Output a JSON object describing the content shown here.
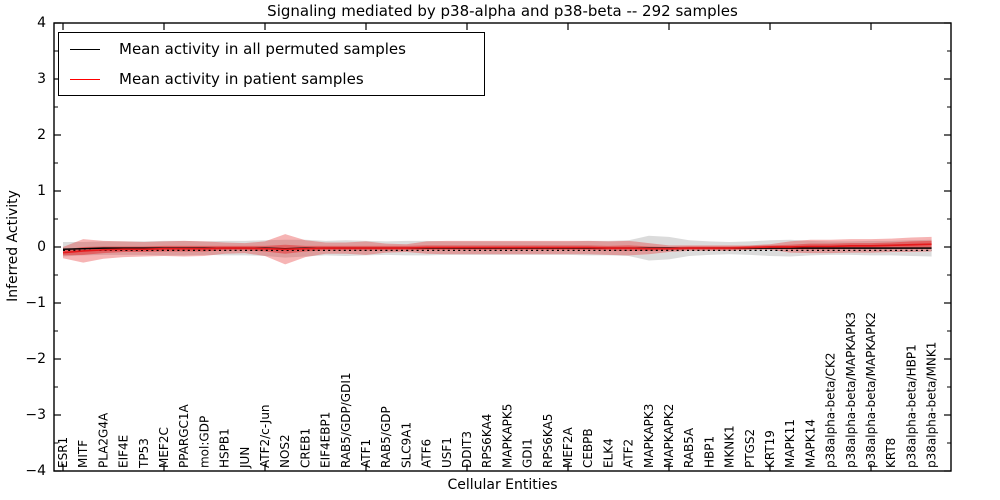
{
  "chart_data": {
    "type": "line",
    "title": "Signaling mediated by p38-alpha and p38-beta -- 292 samples",
    "xlabel": "Cellular Entities",
    "ylabel": "Inferred Activity",
    "ylim": [
      -4,
      4
    ],
    "yticks": [
      -4,
      -3,
      -2,
      -1,
      0,
      1,
      2,
      3,
      4
    ],
    "y_minor_step": 0.5,
    "x_major_ticks_every": 5,
    "grid": false,
    "legend_position": "upper left",
    "legend": [
      {
        "label": "Mean activity in all permuted samples",
        "color": "#000000"
      },
      {
        "label": "Mean activity in patient samples",
        "color": "#ff0000"
      }
    ],
    "categories": [
      "ESR1",
      "MITF",
      "PLA2G4A",
      "EIF4E",
      "TP53",
      "MEF2C",
      "PPARGC1A",
      "mol:GDP",
      "HSPB1",
      "JUN",
      "ATF2/c-Jun",
      "NOS2",
      "CREB1",
      "EIF4EBP1",
      "RAB5/GDP/GDI1",
      "ATF1",
      "RAB5/GDP",
      "SLC9A1",
      "ATF6",
      "USF1",
      "DDIT3",
      "RPS6KA4",
      "MAPKAPK5",
      "GDI1",
      "RPS6KA5",
      "MEF2A",
      "CEBPB",
      "ELK4",
      "ATF2",
      "MAPKAPK3",
      "MAPKAPK2",
      "RAB5A",
      "HBP1",
      "MKNK1",
      "PTGS2",
      "KRT19",
      "MAPK11",
      "MAPK14",
      "p38alpha-beta/CK2",
      "p38alpha-beta/MAPKAPK3",
      "p38alpha-beta/MAPKAPK2",
      "KRT8",
      "p38alpha-beta/HBP1",
      "p38alpha-beta/MNK1"
    ],
    "series": [
      {
        "name": "mean_permuted",
        "color": "#000000",
        "style": "solid",
        "width": 1.4,
        "values": [
          -0.04,
          -0.03,
          -0.02,
          -0.02,
          -0.02,
          -0.02,
          -0.02,
          -0.02,
          -0.02,
          -0.02,
          -0.02,
          -0.03,
          -0.02,
          -0.02,
          -0.02,
          -0.02,
          -0.02,
          -0.02,
          -0.02,
          -0.02,
          -0.02,
          -0.02,
          -0.02,
          -0.02,
          -0.02,
          -0.02,
          -0.02,
          -0.02,
          -0.02,
          -0.02,
          -0.02,
          -0.02,
          -0.02,
          -0.02,
          -0.02,
          -0.02,
          -0.02,
          -0.02,
          -0.02,
          -0.02,
          -0.02,
          -0.02,
          -0.02,
          -0.02
        ]
      },
      {
        "name": "median_permuted",
        "color": "#000000",
        "style": "dashed",
        "width": 1.2,
        "values": [
          -0.06,
          -0.06,
          -0.06,
          -0.06,
          -0.06,
          -0.06,
          -0.06,
          -0.06,
          -0.06,
          -0.06,
          -0.06,
          -0.06,
          -0.06,
          -0.06,
          -0.06,
          -0.06,
          -0.06,
          -0.06,
          -0.06,
          -0.06,
          -0.06,
          -0.06,
          -0.06,
          -0.06,
          -0.06,
          -0.06,
          -0.06,
          -0.06,
          -0.06,
          -0.06,
          -0.06,
          -0.06,
          -0.06,
          -0.06,
          -0.06,
          -0.06,
          -0.06,
          -0.06,
          -0.06,
          -0.06,
          -0.06,
          -0.06,
          -0.06,
          -0.06
        ]
      },
      {
        "name": "mean_patient",
        "color": "#e41a1c",
        "style": "solid",
        "width": 1.7,
        "values": [
          -0.1,
          -0.07,
          -0.05,
          -0.04,
          -0.04,
          -0.03,
          -0.03,
          -0.03,
          -0.02,
          -0.02,
          -0.03,
          -0.04,
          -0.03,
          -0.02,
          -0.02,
          -0.02,
          -0.02,
          -0.02,
          -0.01,
          -0.01,
          -0.01,
          -0.01,
          -0.01,
          -0.01,
          -0.01,
          -0.01,
          -0.01,
          -0.02,
          -0.02,
          -0.03,
          -0.03,
          -0.02,
          -0.02,
          -0.02,
          -0.01,
          0.0,
          0.0,
          0.01,
          0.01,
          0.02,
          0.02,
          0.03,
          0.04,
          0.05
        ]
      }
    ],
    "bands": [
      {
        "name": "permuted_std",
        "follow": "mean_permuted",
        "color": "rgba(0,0,0,0.14)",
        "half_widths": [
          0.13,
          0.12,
          0.12,
          0.12,
          0.12,
          0.13,
          0.13,
          0.12,
          0.13,
          0.13,
          0.14,
          0.16,
          0.15,
          0.13,
          0.14,
          0.13,
          0.12,
          0.13,
          0.13,
          0.12,
          0.12,
          0.12,
          0.12,
          0.12,
          0.12,
          0.12,
          0.13,
          0.13,
          0.14,
          0.22,
          0.2,
          0.14,
          0.12,
          0.11,
          0.12,
          0.14,
          0.15,
          0.13,
          0.12,
          0.12,
          0.13,
          0.13,
          0.14,
          0.15
        ]
      },
      {
        "name": "patient_std",
        "follow": "mean_patient",
        "color": "rgba(228,26,28,0.33)",
        "half_widths": [
          0.1,
          0.21,
          0.16,
          0.14,
          0.13,
          0.13,
          0.14,
          0.13,
          0.1,
          0.09,
          0.13,
          0.27,
          0.15,
          0.1,
          0.1,
          0.12,
          0.08,
          0.07,
          0.11,
          0.12,
          0.12,
          0.12,
          0.12,
          0.12,
          0.12,
          0.12,
          0.12,
          0.12,
          0.13,
          0.1,
          0.06,
          0.05,
          0.05,
          0.05,
          0.04,
          0.05,
          0.1,
          0.12,
          0.12,
          0.12,
          0.12,
          0.12,
          0.13,
          0.13
        ]
      },
      {
        "name": "patient_sem",
        "follow": "mean_patient",
        "color": "rgba(228,26,28,0.45)",
        "half_widths": [
          0.05,
          0.07,
          0.06,
          0.05,
          0.05,
          0.05,
          0.05,
          0.05,
          0.04,
          0.04,
          0.05,
          0.08,
          0.05,
          0.04,
          0.04,
          0.04,
          0.04,
          0.04,
          0.04,
          0.04,
          0.04,
          0.04,
          0.04,
          0.04,
          0.04,
          0.04,
          0.04,
          0.04,
          0.05,
          0.04,
          0.03,
          0.03,
          0.03,
          0.03,
          0.03,
          0.03,
          0.04,
          0.05,
          0.05,
          0.05,
          0.05,
          0.05,
          0.06,
          0.06
        ]
      }
    ]
  }
}
